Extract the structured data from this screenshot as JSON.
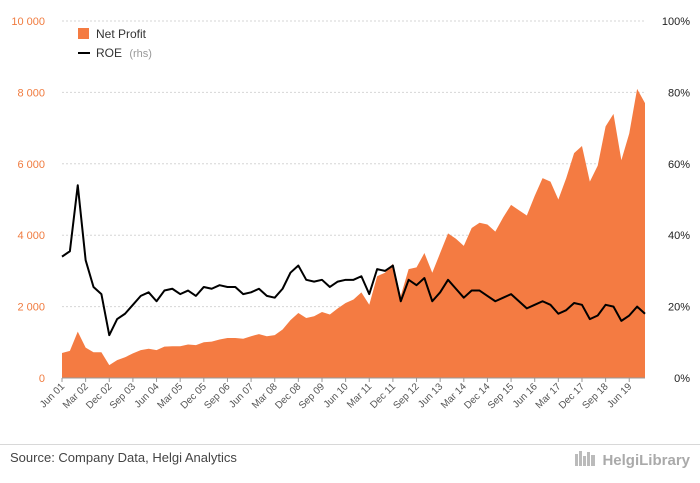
{
  "chart_data": {
    "type": "area",
    "title": "",
    "legend": [
      {
        "name": "Net Profit",
        "suffix": "",
        "color": "#f47b42",
        "marker": "square"
      },
      {
        "name": "ROE",
        "suffix": "(rhs)",
        "color": "#000000",
        "marker": "line"
      }
    ],
    "legend_position": "top-left",
    "y_left": {
      "ylim": [
        0,
        10000
      ],
      "ticks": [
        "0",
        "2 000",
        "4 000",
        "6 000",
        "8 000",
        "10 000"
      ]
    },
    "y_right": {
      "ylim": [
        0,
        100
      ],
      "ticks": [
        "0%",
        "20%",
        "40%",
        "60%",
        "80%",
        "100%"
      ]
    },
    "x_tick_labels": [
      "Jun 01",
      "Mar 02",
      "Dec 02",
      "Sep 03",
      "Jun 04",
      "Mar 05",
      "Dec 05",
      "Sep 06",
      "Jun 07",
      "Mar 08",
      "Dec 08",
      "Sep 09",
      "Jun 10",
      "Mar 11",
      "Dec 11",
      "Sep 12",
      "Jun 13",
      "Mar 14",
      "Dec 14",
      "Sep 15",
      "Jun 16",
      "Mar 17",
      "Dec 17",
      "Sep 18",
      "Jun 19"
    ],
    "x": [
      "Jun 01",
      "Sep 01",
      "Dec 01",
      "Mar 02",
      "Jun 02",
      "Sep 02",
      "Dec 02",
      "Mar 03",
      "Jun 03",
      "Sep 03",
      "Dec 03",
      "Mar 04",
      "Jun 04",
      "Sep 04",
      "Dec 04",
      "Mar 05",
      "Jun 05",
      "Sep 05",
      "Dec 05",
      "Mar 06",
      "Jun 06",
      "Sep 06",
      "Dec 06",
      "Mar 07",
      "Jun 07",
      "Sep 07",
      "Dec 07",
      "Mar 08",
      "Jun 08",
      "Sep 08",
      "Dec 08",
      "Mar 09",
      "Jun 09",
      "Sep 09",
      "Dec 09",
      "Mar 10",
      "Jun 10",
      "Sep 10",
      "Dec 10",
      "Mar 11",
      "Jun 11",
      "Sep 11",
      "Dec 11",
      "Mar 12",
      "Jun 12",
      "Sep 12",
      "Dec 12",
      "Mar 13",
      "Jun 13",
      "Sep 13",
      "Dec 13",
      "Mar 14",
      "Jun 14",
      "Sep 14",
      "Dec 14",
      "Mar 15",
      "Jun 15",
      "Sep 15",
      "Dec 15",
      "Mar 16",
      "Jun 16",
      "Sep 16",
      "Dec 16",
      "Mar 17",
      "Jun 17",
      "Sep 17",
      "Dec 17",
      "Mar 18",
      "Jun 18",
      "Sep 18",
      "Dec 18",
      "Mar 19",
      "Jun 19",
      "Sep 19",
      "Dec 19"
    ],
    "series": [
      {
        "name": "Net Profit",
        "type": "area",
        "axis": "left",
        "color": "#f47b42",
        "values": [
          700,
          760,
          1300,
          850,
          720,
          720,
          360,
          500,
          580,
          690,
          780,
          820,
          780,
          880,
          890,
          890,
          940,
          920,
          1000,
          1020,
          1080,
          1120,
          1120,
          1100,
          1170,
          1230,
          1170,
          1200,
          1360,
          1620,
          1820,
          1680,
          1730,
          1850,
          1780,
          1950,
          2100,
          2200,
          2400,
          2050,
          2850,
          2950,
          3200,
          2300,
          3050,
          3100,
          3500,
          2950,
          3500,
          4050,
          3900,
          3700,
          4200,
          4350,
          4300,
          4100,
          4500,
          4850,
          4700,
          4550,
          5100,
          5600,
          5500,
          5000,
          5600,
          6300,
          6500,
          5500,
          5950,
          7050,
          7400,
          6100,
          6850,
          8100,
          7700
        ]
      },
      {
        "name": "ROE",
        "type": "line",
        "axis": "right",
        "color": "#000000",
        "values": [
          34,
          35.5,
          54,
          33,
          25.5,
          23.5,
          12,
          16.5,
          18,
          20.5,
          23,
          24,
          21.5,
          24.5,
          25,
          23.5,
          24.5,
          23,
          25.5,
          25,
          26,
          25.5,
          25.5,
          23.5,
          24,
          25,
          23,
          22.5,
          25,
          29.5,
          31.5,
          27.5,
          27,
          27.5,
          25.5,
          27,
          27.5,
          27.5,
          28.5,
          23.5,
          30.5,
          30,
          31.5,
          21.5,
          27.5,
          26,
          28,
          21.5,
          24,
          27.5,
          25,
          22.5,
          24.5,
          24.5,
          23,
          21.5,
          22.5,
          23.5,
          21.5,
          19.5,
          20.5,
          21.5,
          20.5,
          18,
          19,
          21,
          20.5,
          16.5,
          17.5,
          20.5,
          20,
          16,
          17.5,
          20,
          18
        ]
      }
    ]
  },
  "footer": {
    "source": "Source: Company Data, Helgi Analytics",
    "brand": "HelgiLibrary"
  }
}
